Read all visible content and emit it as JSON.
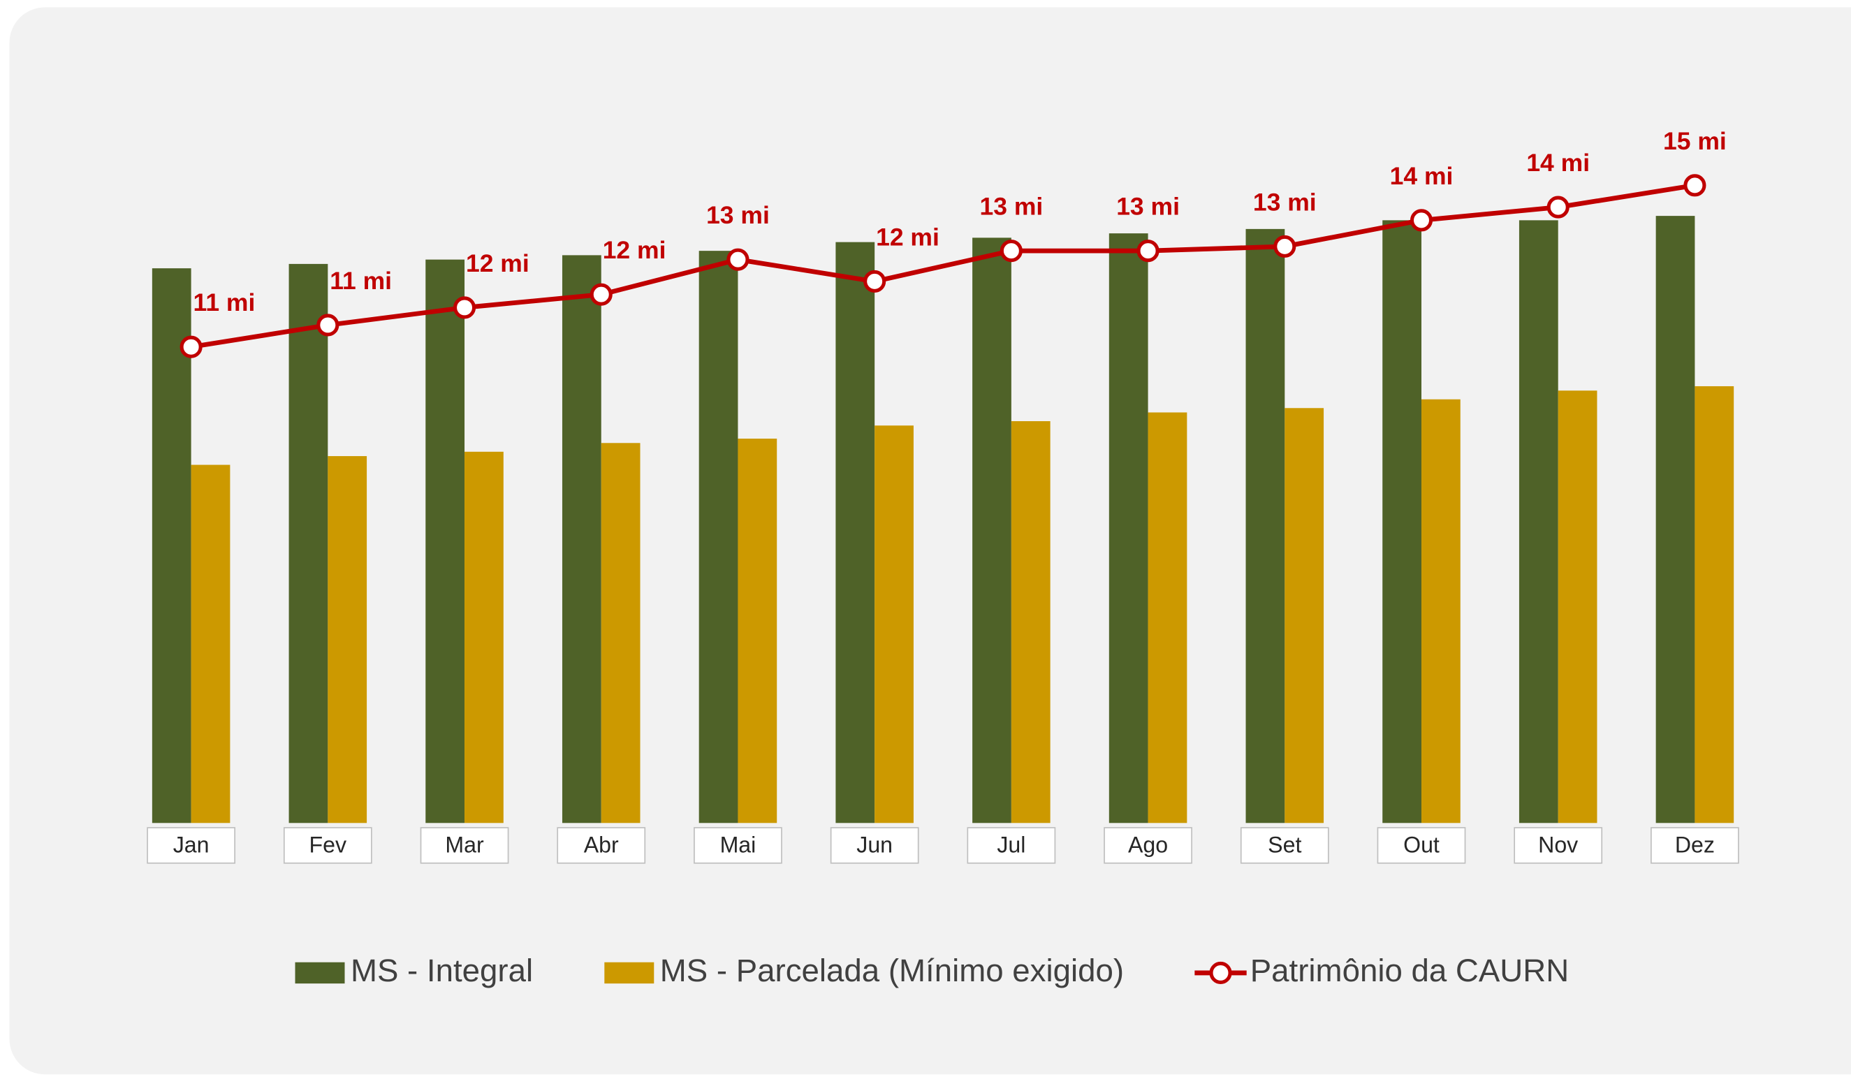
{
  "chart_data": {
    "type": "bar_line",
    "categories": [
      "Jan",
      "Fev",
      "Mar",
      "Abr",
      "Mai",
      "Jun",
      "Jul",
      "Ago",
      "Set",
      "Out",
      "Nov",
      "Dez"
    ],
    "series": [
      {
        "name": "MS - Integral",
        "type": "bar",
        "color": "#4f6228",
        "values": [
          12.7,
          12.8,
          12.9,
          13.0,
          13.1,
          13.3,
          13.4,
          13.5,
          13.6,
          13.8,
          13.8,
          13.9
        ]
      },
      {
        "name": "MS - Parcelada (Mínimo exigido)",
        "type": "bar",
        "color": "#cc9900",
        "values": [
          8.2,
          8.4,
          8.5,
          8.7,
          8.8,
          9.1,
          9.2,
          9.4,
          9.5,
          9.7,
          9.9,
          10.0
        ]
      },
      {
        "name": "Patrimônio da CAURN",
        "type": "line",
        "color": "#c00000",
        "values": [
          10.9,
          11.4,
          11.8,
          12.1,
          12.9,
          12.4,
          13.1,
          13.1,
          13.2,
          13.8,
          14.1,
          14.6
        ],
        "value_labels": [
          "11 mi",
          "11 mi",
          "12 mi",
          "12 mi",
          "13 mi",
          "12 mi",
          "13 mi",
          "13 mi",
          "13 mi",
          "14 mi",
          "14 mi",
          "15 mi"
        ]
      }
    ],
    "ylim": [
      0,
      16
    ],
    "legend": "bottom"
  }
}
